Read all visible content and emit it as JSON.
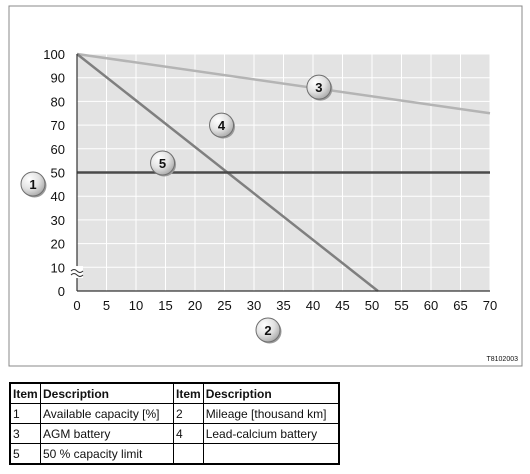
{
  "chart_data": {
    "type": "line",
    "xlim": [
      0,
      70
    ],
    "ylim": [
      0,
      100
    ],
    "x_ticks": [
      0,
      5,
      10,
      15,
      20,
      25,
      30,
      35,
      40,
      45,
      50,
      55,
      60,
      65,
      70
    ],
    "y_ticks": [
      0,
      10,
      20,
      30,
      40,
      50,
      60,
      70,
      80,
      90,
      100
    ],
    "grid": true,
    "axis_break": "y-axis between 0 and 30",
    "series": [
      {
        "item": "3",
        "color": "#b4b4b4",
        "x": [
          0,
          70
        ],
        "y": [
          100,
          75
        ]
      },
      {
        "item": "4",
        "color": "#7f7f7f",
        "x": [
          0,
          51
        ],
        "y": [
          100,
          0
        ]
      },
      {
        "item": "5",
        "color": "#4a4a4a",
        "x": [
          0,
          70
        ],
        "y": [
          50,
          50
        ]
      }
    ],
    "markers": [
      {
        "label": "1",
        "target": "y-axis"
      },
      {
        "label": "2",
        "target": "x-axis"
      },
      {
        "label": "3",
        "x": 41,
        "y": 86
      },
      {
        "label": "4",
        "x": 24.5,
        "y": 70
      },
      {
        "label": "5",
        "x": 14.5,
        "y": 54
      }
    ],
    "figure_code": "T8102003"
  },
  "legend_table": {
    "headers": [
      "Item",
      "Description",
      "Item",
      "Description"
    ],
    "rows": [
      [
        "1",
        "Available capacity [%]",
        "2",
        "Mileage [thousand km]"
      ],
      [
        "3",
        "AGM battery",
        "4",
        "Lead-calcium battery"
      ],
      [
        "5",
        "50 % capacity limit",
        "",
        ""
      ]
    ]
  }
}
